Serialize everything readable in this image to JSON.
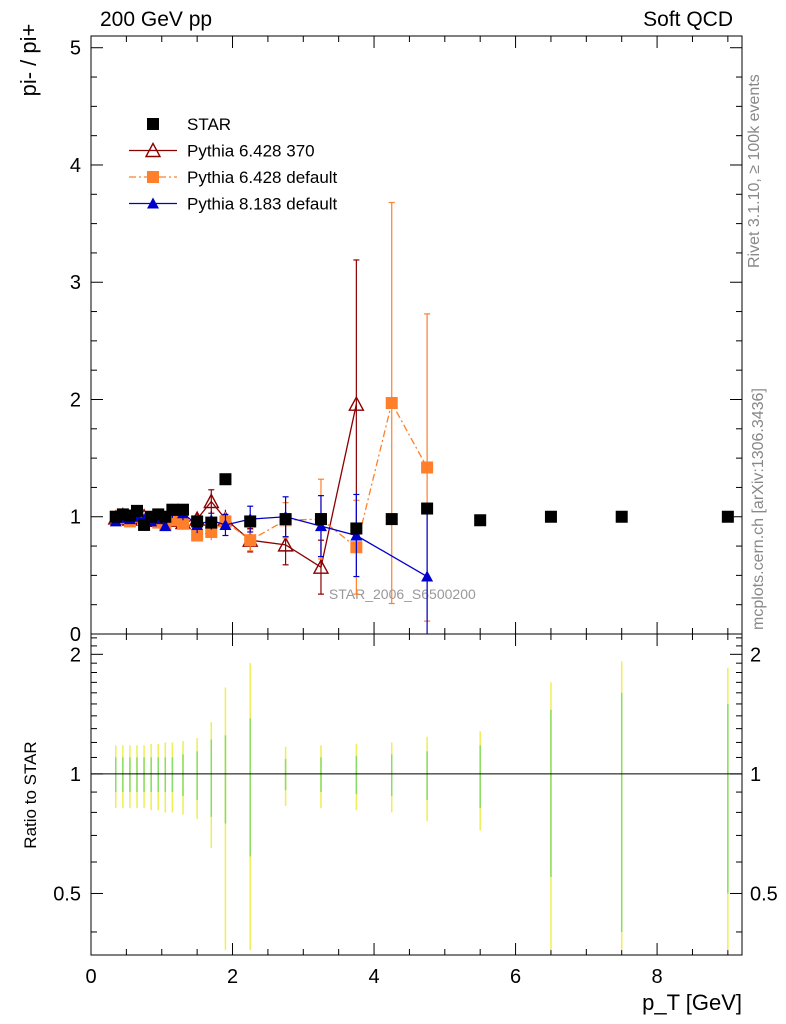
{
  "header": {
    "left": "200 GeV pp",
    "right": "Soft QCD"
  },
  "side_labels": {
    "rivet": "Rivet 3.1.10, ≥ 100k events",
    "mcplots": "mcplots.cern.ch [arXiv:1306.3436]"
  },
  "chart_data": {
    "type": "scatter",
    "title": "",
    "xlabel": "p_T [GeV]",
    "ylabel": "pi- / pi+",
    "ratio_ylabel": "Ratio to STAR",
    "watermark": "STAR_2006_S6500200",
    "xlim": [
      0,
      9.2
    ],
    "ylim": [
      0,
      5.1
    ],
    "ratio_ylim": [
      0.35,
      2.25
    ],
    "x_ticks": [
      0,
      2,
      4,
      6,
      8
    ],
    "y_ticks": [
      0,
      1,
      2,
      3,
      4,
      5
    ],
    "ratio_ticks": [
      0.5,
      1,
      2
    ],
    "legend_position": "top-left",
    "series": [
      {
        "name": "STAR",
        "color": "#000000",
        "marker": "square",
        "line": "none",
        "x": [
          0.35,
          0.45,
          0.55,
          0.65,
          0.75,
          0.85,
          0.95,
          1.05,
          1.15,
          1.3,
          1.5,
          1.7,
          1.9,
          2.25,
          2.75,
          3.25,
          3.75,
          4.25,
          4.75,
          5.5,
          6.5,
          7.5,
          9.0
        ],
        "y": [
          1.0,
          1.02,
          1.01,
          1.05,
          0.93,
          1.0,
          1.02,
          1.0,
          1.06,
          1.06,
          0.96,
          0.95,
          1.32,
          0.96,
          0.98,
          0.98,
          0.9,
          0.98,
          1.07,
          0.97,
          1.0,
          1.0,
          1.0
        ],
        "yerr": [
          0.02,
          0.02,
          0.02,
          0.02,
          0.02,
          0.02,
          0.02,
          0.02,
          0.02,
          0.03,
          0.03,
          0.03,
          0.04,
          0.03,
          0.03,
          0.03,
          0.03,
          0.03,
          0.04,
          0.04,
          0.04,
          0.04,
          0.04
        ]
      },
      {
        "name": "Pythia 6.428 370",
        "color": "#8b0000",
        "marker": "triangle-open",
        "line": "solid",
        "x": [
          0.35,
          0.45,
          0.55,
          0.65,
          0.75,
          0.85,
          0.95,
          1.05,
          1.15,
          1.3,
          1.5,
          1.7,
          1.9,
          2.25,
          2.75,
          3.25,
          3.75
        ],
        "y": [
          0.99,
          1.01,
          0.98,
          1.03,
          1.0,
          0.97,
          1.0,
          0.98,
          0.97,
          0.95,
          0.98,
          1.13,
          0.98,
          0.8,
          0.76,
          0.57,
          1.96
        ],
        "yerr": [
          0.03,
          0.03,
          0.03,
          0.03,
          0.03,
          0.03,
          0.04,
          0.04,
          0.04,
          0.05,
          0.06,
          0.1,
          0.08,
          0.1,
          0.17,
          0.23,
          1.23
        ]
      },
      {
        "name": "Pythia 6.428 default",
        "color": "#ff7f2a",
        "marker": "square",
        "line": "dashdot",
        "x": [
          0.35,
          0.45,
          0.55,
          0.65,
          0.75,
          0.85,
          0.95,
          1.05,
          1.15,
          1.3,
          1.5,
          1.7,
          1.9,
          2.25,
          2.75,
          3.25,
          3.75,
          4.25,
          4.75
        ],
        "y": [
          1.0,
          0.99,
          0.96,
          1.0,
          0.97,
          0.98,
          0.95,
          0.93,
          0.97,
          0.94,
          0.84,
          0.87,
          0.96,
          0.8,
          0.97,
          0.98,
          0.74,
          1.97,
          1.42
        ],
        "yerr": [
          0.03,
          0.03,
          0.03,
          0.03,
          0.03,
          0.04,
          0.04,
          0.04,
          0.05,
          0.05,
          0.05,
          0.07,
          0.08,
          0.09,
          0.15,
          0.34,
          0.4,
          1.71,
          1.31
        ]
      },
      {
        "name": "Pythia 8.183 default",
        "color": "#0000cc",
        "marker": "triangle",
        "line": "solid",
        "x": [
          0.35,
          0.45,
          0.55,
          0.65,
          0.75,
          0.85,
          0.95,
          1.05,
          1.15,
          1.3,
          1.5,
          1.7,
          1.9,
          2.25,
          2.75,
          3.25,
          3.75,
          4.75
        ],
        "y": [
          0.96,
          0.99,
          0.98,
          1.0,
          0.98,
          0.96,
          0.98,
          0.92,
          1.05,
          1.03,
          0.93,
          0.97,
          0.93,
          0.98,
          1.0,
          0.92,
          0.84,
          0.49
        ],
        "yerr": [
          0.03,
          0.03,
          0.03,
          0.03,
          0.04,
          0.04,
          0.04,
          0.04,
          0.06,
          0.06,
          0.07,
          0.08,
          0.09,
          0.11,
          0.17,
          0.26,
          0.35,
          0.55
        ]
      }
    ],
    "ratio_band": {
      "name": "STAR uncertainty",
      "inner_color": "#88dd66",
      "outer_color": "#eeee55",
      "x": [
        0.35,
        0.45,
        0.55,
        0.65,
        0.75,
        0.85,
        0.95,
        1.05,
        1.15,
        1.3,
        1.5,
        1.7,
        1.9,
        2.25,
        2.75,
        3.25,
        3.75,
        4.25,
        4.75,
        5.5,
        6.5,
        7.5,
        9.0
      ],
      "inner": [
        0.1,
        0.1,
        0.1,
        0.1,
        0.1,
        0.1,
        0.1,
        0.1,
        0.1,
        0.12,
        0.14,
        0.22,
        0.25,
        0.38,
        0.09,
        0.1,
        0.11,
        0.12,
        0.14,
        0.18,
        0.45,
        0.6,
        0.5
      ],
      "outer": [
        0.18,
        0.18,
        0.18,
        0.18,
        0.18,
        0.19,
        0.19,
        0.2,
        0.2,
        0.21,
        0.23,
        0.35,
        0.65,
        0.9,
        0.17,
        0.18,
        0.19,
        0.2,
        0.24,
        0.28,
        0.7,
        0.92,
        0.85
      ]
    }
  }
}
